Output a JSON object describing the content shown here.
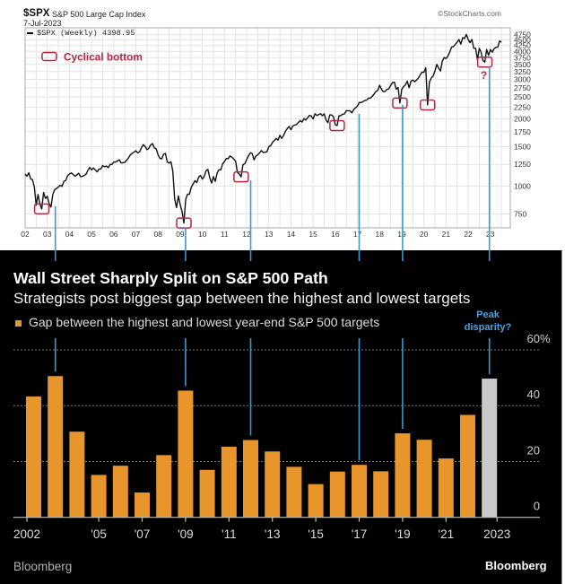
{
  "top_chart": {
    "symbol": "$SPX",
    "name": "S&P 500 Large Cap Index",
    "date": "7-Jul-2023",
    "legend": "$SPX (Weekly) 4398.95",
    "watermark": "©StockCharts.com",
    "annotation_legend": "Cyclical bottom"
  },
  "bottom_chart": {
    "title": "Wall Street Sharply Split on S&P 500 Path",
    "subtitle": "Strategists post biggest gap between the highest and lowest targets",
    "legend": "Gap between the highest and lowest year-end S&P 500 targets",
    "callout_line1": "Peak",
    "callout_line2": "disparity?",
    "source": "Bloomberg",
    "logo": "Bloomberg"
  },
  "colors": {
    "price_line": "#111111",
    "annotation_red": "#b5283f",
    "bar_orange": "#e8952c",
    "bar_highlight_gray": "#c9c9c9",
    "connector_blue": "#3b98d4",
    "callout_blue": "#47a3e0"
  },
  "connector_years": [
    2003,
    2009,
    2012,
    2017,
    2019,
    2023
  ],
  "chart_data": [
    {
      "type": "line",
      "title": "$SPX S&P 500 Large Cap Index",
      "y_scale": "log",
      "xlim": [
        2002,
        2023.9
      ],
      "ylim": [
        650,
        5100
      ],
      "grid": true,
      "yticks": [
        750,
        1000,
        1250,
        1500,
        1750,
        2000,
        2250,
        2500,
        2750,
        3000,
        3250,
        3500,
        3750,
        4000,
        4250,
        4500,
        4750
      ],
      "ytick_labels": [
        "750",
        "1000",
        "1250",
        "1500",
        "1750",
        "2000",
        "2250",
        "2500",
        "2750",
        "3000",
        "3250",
        "3500",
        "3750",
        "4000",
        "4250",
        "4500",
        "4750"
      ],
      "xtick_labels": [
        "02",
        "03",
        "04",
        "05",
        "06",
        "07",
        "08",
        "09",
        "10",
        "11",
        "12",
        "13",
        "14",
        "15",
        "16",
        "17",
        "18",
        "19",
        "20",
        "21",
        "22",
        "23"
      ],
      "series": [
        {
          "name": "$SPX (Weekly)",
          "start": "2002-01",
          "interval": "month",
          "values": [
            1130,
            1106,
            1147,
            1076,
            1067,
            990,
            820,
            916,
            830,
            790,
            936,
            880,
            900,
            835,
            805,
            917,
            964,
            975,
            990,
            1008,
            996,
            1050,
            1058,
            1112,
            1131,
            1145,
            1126,
            1107,
            1121,
            1141,
            1101,
            1104,
            1115,
            1130,
            1174,
            1212,
            1181,
            1204,
            1181,
            1157,
            1191,
            1191,
            1234,
            1220,
            1229,
            1207,
            1249,
            1248,
            1280,
            1281,
            1295,
            1311,
            1270,
            1270,
            1277,
            1304,
            1336,
            1378,
            1401,
            1418,
            1438,
            1407,
            1421,
            1482,
            1531,
            1503,
            1455,
            1474,
            1527,
            1549,
            1481,
            1468,
            1379,
            1331,
            1323,
            1386,
            1400,
            1280,
            1267,
            1283,
            1166,
            877,
            800,
            903,
            826,
            770,
            683,
            873,
            919,
            919,
            987,
            1021,
            1057,
            1036,
            1096,
            1115,
            1074,
            1104,
            1169,
            1187,
            1089,
            1031,
            1102,
            1049,
            1141,
            1183,
            1181,
            1258,
            1286,
            1327,
            1326,
            1364,
            1345,
            1321,
            1292,
            1150,
            1131,
            1099,
            1247,
            1258,
            1312,
            1366,
            1408,
            1398,
            1310,
            1362,
            1379,
            1407,
            1441,
            1412,
            1416,
            1426,
            1498,
            1515,
            1569,
            1598,
            1631,
            1606,
            1686,
            1633,
            1682,
            1757,
            1806,
            1848,
            1783,
            1859,
            1872,
            1884,
            1924,
            1960,
            1931,
            2003,
            1972,
            2018,
            2068,
            2059,
            1995,
            2105,
            2068,
            2086,
            2107,
            2063,
            2104,
            1972,
            1920,
            2079,
            2080,
            2044,
            1880,
            1864,
            2060,
            2065,
            2097,
            2099,
            2174,
            2171,
            2168,
            2126,
            2199,
            2239,
            2279,
            2364,
            2363,
            2384,
            2412,
            2423,
            2470,
            2472,
            2519,
            2575,
            2648,
            2674,
            2824,
            2714,
            2641,
            2648,
            2705,
            2718,
            2816,
            2902,
            2914,
            2711,
            2760,
            2351,
            2704,
            2784,
            2834,
            2946,
            2752,
            2942,
            2980,
            2926,
            2977,
            3038,
            3141,
            3231,
            3226,
            3380,
            2305,
            2912,
            3044,
            3100,
            3271,
            3500,
            3363,
            3270,
            3622,
            3756,
            3714,
            3811,
            3973,
            4181,
            4204,
            4298,
            4395,
            4523,
            4308,
            4605,
            4567,
            4766,
            4516,
            4374,
            4530,
            4132,
            4132,
            3675,
            4130,
            3955,
            3640,
            3583,
            4080,
            3840,
            4077,
            3970,
            4109,
            4169,
            4180,
            4450,
            4398.95
          ]
        }
      ],
      "annotations": [
        {
          "date": "2002-10",
          "value": 790
        },
        {
          "date": "2009-03",
          "value": 683
        },
        {
          "date": "2011-10",
          "value": 1099
        },
        {
          "date": "2016-02",
          "value": 1864
        },
        {
          "date": "2018-12",
          "value": 2351
        },
        {
          "date": "2020-03",
          "value": 2305
        },
        {
          "date": "2022-10",
          "value": 3583,
          "label": "?"
        }
      ]
    },
    {
      "type": "bar",
      "title": "Wall Street Sharply Split on S&P 500 Path",
      "subtitle": "Strategists post biggest gap between the highest and lowest targets",
      "xlabel": "",
      "ylabel": "",
      "ylim": [
        0,
        60
      ],
      "grid": true,
      "legend_position": "top-left",
      "categories": [
        "2002",
        "2003",
        "2004",
        "2005",
        "2006",
        "2007",
        "2008",
        "2009",
        "2010",
        "2011",
        "2012",
        "2013",
        "2014",
        "2015",
        "2016",
        "2017",
        "2018",
        "2019",
        "2020",
        "2021",
        "2022",
        "2023"
      ],
      "series": [
        {
          "name": "Gap between the highest and lowest year-end S&P 500 targets",
          "values": [
            43.3,
            50.6,
            30.7,
            15.2,
            18.5,
            8.9,
            22.3,
            45.4,
            17.0,
            25.3,
            27.7,
            23.6,
            18.1,
            11.9,
            16.4,
            18.8,
            16.5,
            30.1,
            27.8,
            21.1,
            36.7,
            49.7
          ]
        }
      ],
      "highlight_category": "2023",
      "yticks": [
        0,
        20,
        40,
        60
      ],
      "ytick_labels": [
        "0",
        "20",
        "40",
        "60%"
      ],
      "xticks": [
        2002,
        2005,
        2007,
        2009,
        2011,
        2013,
        2015,
        2017,
        2019,
        2021,
        2023
      ],
      "xtick_labels": [
        "2002",
        "'05",
        "'07",
        "'09",
        "'11",
        "'13",
        "'15",
        "'17",
        "'19",
        "'21",
        "2023"
      ]
    }
  ]
}
